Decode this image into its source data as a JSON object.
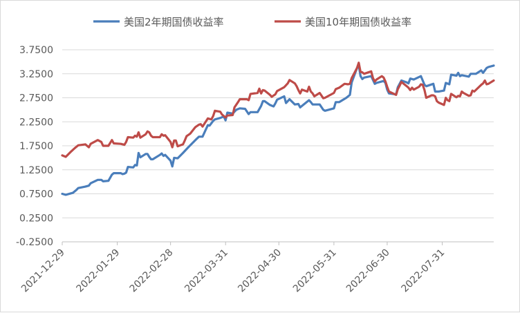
{
  "chart_data": {
    "type": "line",
    "title": "",
    "xlabel": "",
    "ylabel": "",
    "ylim": [
      -0.25,
      3.75
    ],
    "y_ticks": [
      "3.7500",
      "3.2500",
      "2.7500",
      "2.2500",
      "1.7500",
      "1.2500",
      "0.7500",
      "0.2500",
      "-0.2500"
    ],
    "x_range": [
      "2021-12-29",
      "2022-08-29"
    ],
    "x_ticks": [
      "2021-12-29",
      "2022-01-29",
      "2022-02-28",
      "2022-03-31",
      "2022-04-30",
      "2022-05-31",
      "2022-06-30",
      "2022-07-31"
    ],
    "grid": "horizontal",
    "legend_position": "top",
    "series": [
      {
        "name": "美国2年期国债收益率",
        "color": "#4a7ebb",
        "points": [
          [
            "2021-12-29",
            0.75
          ],
          [
            "2021-12-31",
            0.73
          ],
          [
            "2022-01-04",
            0.77
          ],
          [
            "2022-01-06",
            0.83
          ],
          [
            "2022-01-07",
            0.87
          ],
          [
            "2022-01-11",
            0.9
          ],
          [
            "2022-01-13",
            0.92
          ],
          [
            "2022-01-14",
            0.97
          ],
          [
            "2022-01-18",
            1.04
          ],
          [
            "2022-01-20",
            1.04
          ],
          [
            "2022-01-21",
            1.01
          ],
          [
            "2022-01-24",
            1.02
          ],
          [
            "2022-01-26",
            1.15
          ],
          [
            "2022-01-27",
            1.18
          ],
          [
            "2022-01-31",
            1.18
          ],
          [
            "2022-02-01",
            1.16
          ],
          [
            "2022-02-02",
            1.17
          ],
          [
            "2022-02-03",
            1.19
          ],
          [
            "2022-02-04",
            1.31
          ],
          [
            "2022-02-07",
            1.3
          ],
          [
            "2022-02-08",
            1.35
          ],
          [
            "2022-02-09",
            1.34
          ],
          [
            "2022-02-10",
            1.6
          ],
          [
            "2022-02-11",
            1.51
          ],
          [
            "2022-02-14",
            1.58
          ],
          [
            "2022-02-15",
            1.58
          ],
          [
            "2022-02-16",
            1.52
          ],
          [
            "2022-02-17",
            1.47
          ],
          [
            "2022-02-18",
            1.47
          ],
          [
            "2022-02-22",
            1.56
          ],
          [
            "2022-02-23",
            1.59
          ],
          [
            "2022-02-24",
            1.54
          ],
          [
            "2022-02-25",
            1.56
          ],
          [
            "2022-02-28",
            1.44
          ],
          [
            "2022-03-01",
            1.32
          ],
          [
            "2022-03-02",
            1.5
          ],
          [
            "2022-03-04",
            1.49
          ],
          [
            "2022-03-07",
            1.6
          ],
          [
            "2022-03-10",
            1.72
          ],
          [
            "2022-03-14",
            1.87
          ],
          [
            "2022-03-16",
            1.94
          ],
          [
            "2022-03-18",
            1.94
          ],
          [
            "2022-03-21",
            2.18
          ],
          [
            "2022-03-22",
            2.17
          ],
          [
            "2022-03-24",
            2.27
          ],
          [
            "2022-03-25",
            2.3
          ],
          [
            "2022-03-28",
            2.33
          ],
          [
            "2022-03-30",
            2.36
          ],
          [
            "2022-03-31",
            2.28
          ],
          [
            "2022-04-01",
            2.44
          ],
          [
            "2022-04-04",
            2.42
          ],
          [
            "2022-04-06",
            2.5
          ],
          [
            "2022-04-08",
            2.53
          ],
          [
            "2022-04-11",
            2.52
          ],
          [
            "2022-04-13",
            2.41
          ],
          [
            "2022-04-14",
            2.45
          ],
          [
            "2022-04-18",
            2.45
          ],
          [
            "2022-04-20",
            2.58
          ],
          [
            "2022-04-21",
            2.68
          ],
          [
            "2022-04-22",
            2.68
          ],
          [
            "2022-04-25",
            2.6
          ],
          [
            "2022-04-27",
            2.57
          ],
          [
            "2022-04-28",
            2.63
          ],
          [
            "2022-04-29",
            2.71
          ],
          [
            "2022-05-03",
            2.78
          ],
          [
            "2022-05-04",
            2.64
          ],
          [
            "2022-05-06",
            2.72
          ],
          [
            "2022-05-09",
            2.61
          ],
          [
            "2022-05-11",
            2.62
          ],
          [
            "2022-05-12",
            2.55
          ],
          [
            "2022-05-13",
            2.58
          ],
          [
            "2022-05-17",
            2.7
          ],
          [
            "2022-05-18",
            2.66
          ],
          [
            "2022-05-19",
            2.61
          ],
          [
            "2022-05-23",
            2.61
          ],
          [
            "2022-05-25",
            2.5
          ],
          [
            "2022-05-26",
            2.48
          ],
          [
            "2022-05-31",
            2.53
          ],
          [
            "2022-06-01",
            2.66
          ],
          [
            "2022-06-03",
            2.66
          ],
          [
            "2022-06-07",
            2.75
          ],
          [
            "2022-06-09",
            2.81
          ],
          [
            "2022-06-10",
            3.07
          ],
          [
            "2022-06-13",
            3.37
          ],
          [
            "2022-06-14",
            3.43
          ],
          [
            "2022-06-15",
            3.2
          ],
          [
            "2022-06-16",
            3.14
          ],
          [
            "2022-06-17",
            3.17
          ],
          [
            "2022-06-21",
            3.2
          ],
          [
            "2022-06-23",
            3.04
          ],
          [
            "2022-06-24",
            3.06
          ],
          [
            "2022-06-28",
            3.1
          ],
          [
            "2022-06-29",
            3.06
          ],
          [
            "2022-06-30",
            2.92
          ],
          [
            "2022-07-01",
            2.84
          ],
          [
            "2022-07-05",
            2.82
          ],
          [
            "2022-07-06",
            2.97
          ],
          [
            "2022-07-08",
            3.11
          ],
          [
            "2022-07-11",
            3.07
          ],
          [
            "2022-07-12",
            3.05
          ],
          [
            "2022-07-13",
            3.15
          ],
          [
            "2022-07-15",
            3.13
          ],
          [
            "2022-07-19",
            3.2
          ],
          [
            "2022-07-21",
            3.02
          ],
          [
            "2022-07-22",
            2.99
          ],
          [
            "2022-07-26",
            3.04
          ],
          [
            "2022-07-27",
            2.88
          ],
          [
            "2022-07-29",
            2.88
          ],
          [
            "2022-08-01",
            2.9
          ],
          [
            "2022-08-02",
            3.06
          ],
          [
            "2022-08-04",
            3.03
          ],
          [
            "2022-08-05",
            3.23
          ],
          [
            "2022-08-08",
            3.21
          ],
          [
            "2022-08-09",
            3.27
          ],
          [
            "2022-08-10",
            3.2
          ],
          [
            "2022-08-11",
            3.22
          ],
          [
            "2022-08-15",
            3.19
          ],
          [
            "2022-08-16",
            3.25
          ],
          [
            "2022-08-19",
            3.25
          ],
          [
            "2022-08-22",
            3.32
          ],
          [
            "2022-08-23",
            3.27
          ],
          [
            "2022-08-25",
            3.37
          ],
          [
            "2022-08-26",
            3.39
          ],
          [
            "2022-08-29",
            3.42
          ]
        ]
      },
      {
        "name": "美国10年期国债收益率",
        "color": "#be4b48",
        "points": [
          [
            "2021-12-29",
            1.55
          ],
          [
            "2021-12-31",
            1.52
          ],
          [
            "2022-01-03",
            1.63
          ],
          [
            "2022-01-05",
            1.7
          ],
          [
            "2022-01-07",
            1.76
          ],
          [
            "2022-01-11",
            1.78
          ],
          [
            "2022-01-13",
            1.72
          ],
          [
            "2022-01-14",
            1.79
          ],
          [
            "2022-01-18",
            1.87
          ],
          [
            "2022-01-20",
            1.83
          ],
          [
            "2022-01-21",
            1.75
          ],
          [
            "2022-01-24",
            1.75
          ],
          [
            "2022-01-26",
            1.87
          ],
          [
            "2022-01-27",
            1.8
          ],
          [
            "2022-01-31",
            1.79
          ],
          [
            "2022-02-02",
            1.77
          ],
          [
            "2022-02-03",
            1.83
          ],
          [
            "2022-02-04",
            1.93
          ],
          [
            "2022-02-07",
            1.92
          ],
          [
            "2022-02-08",
            1.96
          ],
          [
            "2022-02-09",
            1.94
          ],
          [
            "2022-02-10",
            2.03
          ],
          [
            "2022-02-11",
            1.92
          ],
          [
            "2022-02-14",
            1.99
          ],
          [
            "2022-02-15",
            2.05
          ],
          [
            "2022-02-16",
            2.03
          ],
          [
            "2022-02-17",
            1.96
          ],
          [
            "2022-02-18",
            1.93
          ],
          [
            "2022-02-22",
            1.93
          ],
          [
            "2022-02-23",
            1.99
          ],
          [
            "2022-02-24",
            1.96
          ],
          [
            "2022-02-25",
            1.97
          ],
          [
            "2022-02-28",
            1.83
          ],
          [
            "2022-03-01",
            1.72
          ],
          [
            "2022-03-02",
            1.86
          ],
          [
            "2022-03-03",
            1.86
          ],
          [
            "2022-03-04",
            1.74
          ],
          [
            "2022-03-07",
            1.78
          ],
          [
            "2022-03-08",
            1.86
          ],
          [
            "2022-03-09",
            1.95
          ],
          [
            "2022-03-11",
            2.0
          ],
          [
            "2022-03-14",
            2.14
          ],
          [
            "2022-03-16",
            2.19
          ],
          [
            "2022-03-17",
            2.2
          ],
          [
            "2022-03-18",
            2.15
          ],
          [
            "2022-03-21",
            2.32
          ],
          [
            "2022-03-23",
            2.3
          ],
          [
            "2022-03-24",
            2.37
          ],
          [
            "2022-03-25",
            2.48
          ],
          [
            "2022-03-28",
            2.46
          ],
          [
            "2022-03-29",
            2.4
          ],
          [
            "2022-03-31",
            2.34
          ],
          [
            "2022-04-01",
            2.38
          ],
          [
            "2022-04-04",
            2.39
          ],
          [
            "2022-04-05",
            2.55
          ],
          [
            "2022-04-07",
            2.66
          ],
          [
            "2022-04-08",
            2.72
          ],
          [
            "2022-04-12",
            2.72
          ],
          [
            "2022-04-13",
            2.7
          ],
          [
            "2022-04-14",
            2.83
          ],
          [
            "2022-04-18",
            2.85
          ],
          [
            "2022-04-19",
            2.94
          ],
          [
            "2022-04-20",
            2.84
          ],
          [
            "2022-04-21",
            2.91
          ],
          [
            "2022-04-22",
            2.9
          ],
          [
            "2022-04-25",
            2.81
          ],
          [
            "2022-04-26",
            2.77
          ],
          [
            "2022-04-28",
            2.82
          ],
          [
            "2022-04-29",
            2.89
          ],
          [
            "2022-05-03",
            2.97
          ],
          [
            "2022-05-05",
            3.05
          ],
          [
            "2022-05-06",
            3.12
          ],
          [
            "2022-05-09",
            3.05
          ],
          [
            "2022-05-10",
            2.99
          ],
          [
            "2022-05-11",
            2.91
          ],
          [
            "2022-05-12",
            2.84
          ],
          [
            "2022-05-13",
            2.92
          ],
          [
            "2022-05-16",
            2.88
          ],
          [
            "2022-05-17",
            2.98
          ],
          [
            "2022-05-18",
            2.88
          ],
          [
            "2022-05-19",
            2.84
          ],
          [
            "2022-05-20",
            2.78
          ],
          [
            "2022-05-23",
            2.85
          ],
          [
            "2022-05-25",
            2.74
          ],
          [
            "2022-05-26",
            2.75
          ],
          [
            "2022-05-31",
            2.85
          ],
          [
            "2022-06-01",
            2.93
          ],
          [
            "2022-06-03",
            2.96
          ],
          [
            "2022-06-06",
            3.04
          ],
          [
            "2022-06-08",
            3.03
          ],
          [
            "2022-06-09",
            3.04
          ],
          [
            "2022-06-10",
            3.16
          ],
          [
            "2022-06-13",
            3.37
          ],
          [
            "2022-06-14",
            3.48
          ],
          [
            "2022-06-15",
            3.29
          ],
          [
            "2022-06-16",
            3.28
          ],
          [
            "2022-06-17",
            3.25
          ],
          [
            "2022-06-21",
            3.3
          ],
          [
            "2022-06-22",
            3.16
          ],
          [
            "2022-06-23",
            3.09
          ],
          [
            "2022-06-24",
            3.13
          ],
          [
            "2022-06-27",
            3.2
          ],
          [
            "2022-06-28",
            3.17
          ],
          [
            "2022-06-29",
            3.09
          ],
          [
            "2022-06-30",
            2.98
          ],
          [
            "2022-07-01",
            2.88
          ],
          [
            "2022-07-05",
            2.81
          ],
          [
            "2022-07-06",
            2.93
          ],
          [
            "2022-07-07",
            3.0
          ],
          [
            "2022-07-08",
            3.08
          ],
          [
            "2022-07-11",
            2.99
          ],
          [
            "2022-07-12",
            2.96
          ],
          [
            "2022-07-13",
            2.91
          ],
          [
            "2022-07-14",
            2.96
          ],
          [
            "2022-07-15",
            2.92
          ],
          [
            "2022-07-18",
            2.98
          ],
          [
            "2022-07-19",
            3.03
          ],
          [
            "2022-07-20",
            3.02
          ],
          [
            "2022-07-21",
            2.91
          ],
          [
            "2022-07-22",
            2.75
          ],
          [
            "2022-07-25",
            2.8
          ],
          [
            "2022-07-26",
            2.8
          ],
          [
            "2022-07-27",
            2.78
          ],
          [
            "2022-07-28",
            2.68
          ],
          [
            "2022-07-29",
            2.65
          ],
          [
            "2022-08-01",
            2.6
          ],
          [
            "2022-08-02",
            2.75
          ],
          [
            "2022-08-03",
            2.7
          ],
          [
            "2022-08-04",
            2.68
          ],
          [
            "2022-08-05",
            2.83
          ],
          [
            "2022-08-08",
            2.76
          ],
          [
            "2022-08-09",
            2.79
          ],
          [
            "2022-08-10",
            2.78
          ],
          [
            "2022-08-11",
            2.88
          ],
          [
            "2022-08-12",
            2.85
          ],
          [
            "2022-08-15",
            2.79
          ],
          [
            "2022-08-16",
            2.8
          ],
          [
            "2022-08-17",
            2.9
          ],
          [
            "2022-08-18",
            2.88
          ],
          [
            "2022-08-22",
            3.02
          ],
          [
            "2022-08-23",
            3.05
          ],
          [
            "2022-08-24",
            3.11
          ],
          [
            "2022-08-25",
            3.03
          ],
          [
            "2022-08-26",
            3.04
          ],
          [
            "2022-08-29",
            3.11
          ]
        ]
      }
    ]
  }
}
